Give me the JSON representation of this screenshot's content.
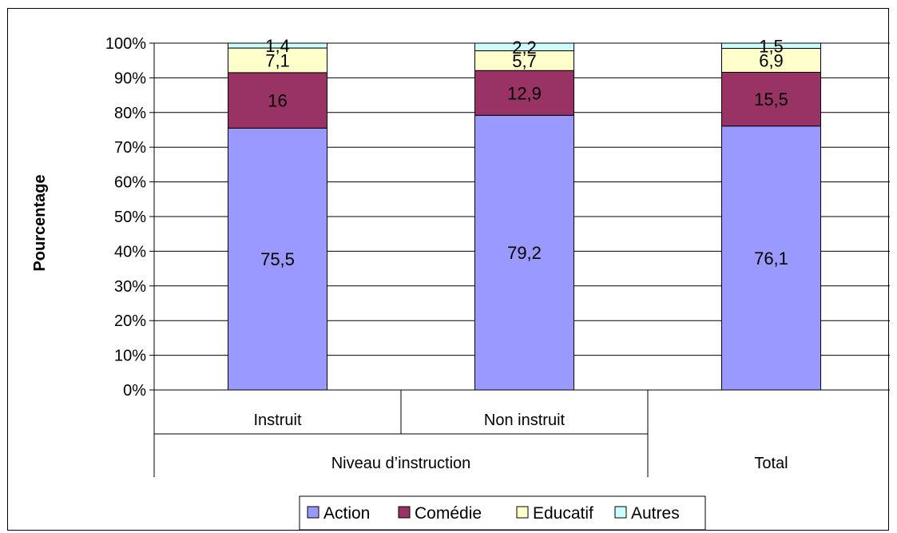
{
  "chart_data": {
    "type": "bar",
    "stacked": true,
    "percent_stacked": true,
    "title": "",
    "xlabel": "",
    "ylabel": "Pourcentage",
    "ylim": [
      0,
      100
    ],
    "yticks": [
      "0%",
      "10%",
      "20%",
      "30%",
      "40%",
      "50%",
      "60%",
      "70%",
      "80%",
      "90%",
      "100%"
    ],
    "grid": true,
    "legend_position": "bottom",
    "categories": [
      "Instruit",
      "Non instruit",
      "Total"
    ],
    "category_groups": [
      {
        "label": "Niveau d’instruction",
        "categories": [
          "Instruit",
          "Non instruit"
        ]
      },
      {
        "label": "Total",
        "categories": [
          "Total"
        ]
      }
    ],
    "category_labels_shown": [
      "Instruit",
      "Non instruit",
      ""
    ],
    "series": [
      {
        "name": "Action",
        "color": "#9999ff",
        "values": [
          75.5,
          79.2,
          76.1
        ],
        "labels": [
          "75,5",
          "79,2",
          "76,1"
        ]
      },
      {
        "name": "Comédie",
        "color": "#993366",
        "values": [
          16,
          12.9,
          15.5
        ],
        "labels": [
          "16",
          "12,9",
          "15,5"
        ]
      },
      {
        "name": "Educatif",
        "color": "#ffffcc",
        "values": [
          7.1,
          5.7,
          6.9
        ],
        "labels": [
          "7,1",
          "5,7",
          "6,9"
        ]
      },
      {
        "name": "Autres",
        "color": "#ccffff",
        "values": [
          1.4,
          2.2,
          1.5
        ],
        "labels": [
          "1,4",
          "2,2",
          "1,5"
        ]
      }
    ]
  }
}
